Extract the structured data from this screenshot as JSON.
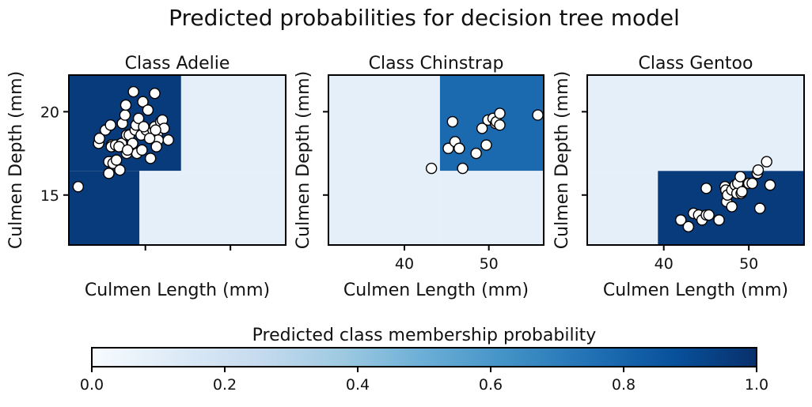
{
  "figure": {
    "title": "Predicted probabilities for decision tree model",
    "colorbar": {
      "label": "Predicted class membership probability",
      "range": [
        0,
        1
      ],
      "ticks": [
        "0.0",
        "0.2",
        "0.4",
        "0.6",
        "0.8",
        "1.0"
      ],
      "colormap": "Blues"
    }
  },
  "chart_data": [
    {
      "type": "scatter",
      "title": "Class Adelie",
      "xlabel": "Culmen Length (mm)",
      "ylabel": "Culmen Depth (mm)",
      "xlim": [
        31,
        56.5
      ],
      "ylim": [
        12,
        22.2
      ],
      "xticks": [
        40,
        50
      ],
      "yticks": [
        15,
        20
      ],
      "show_xticklabels": false,
      "show_yticklabels": true,
      "regions": [
        {
          "x0": 31,
          "x1": 44.2,
          "y0": 16.45,
          "y1": 22.2,
          "p": 0.96
        },
        {
          "x0": 31,
          "x1": 39.3,
          "y0": 12,
          "y1": 16.45,
          "p": 0.96
        },
        {
          "x0": 44.2,
          "x1": 56.5,
          "y0": 16.45,
          "y1": 22.2,
          "p": 0.09
        },
        {
          "x0": 39.3,
          "x1": 56.5,
          "y0": 12,
          "y1": 16.45,
          "p": 0.09
        }
      ],
      "points": [
        [
          32.1,
          15.5
        ],
        [
          34.5,
          18.1
        ],
        [
          34.6,
          18.4
        ],
        [
          35.3,
          18.9
        ],
        [
          35.7,
          17.0
        ],
        [
          35.7,
          16.3
        ],
        [
          35.9,
          19.2
        ],
        [
          36.0,
          18.0
        ],
        [
          36.0,
          17.9
        ],
        [
          36.2,
          16.9
        ],
        [
          36.5,
          18.0
        ],
        [
          36.6,
          17.1
        ],
        [
          37.0,
          16.5
        ],
        [
          37.2,
          18.1
        ],
        [
          37.3,
          19.3
        ],
        [
          37.6,
          19.8
        ],
        [
          37.8,
          18.6
        ],
        [
          37.8,
          17.5
        ],
        [
          38.1,
          18.6
        ],
        [
          38.5,
          18.1
        ],
        [
          38.6,
          21.2
        ],
        [
          38.8,
          18.9
        ],
        [
          38.9,
          19.2
        ],
        [
          39.0,
          17.5
        ],
        [
          39.2,
          19.6
        ],
        [
          39.5,
          18.6
        ],
        [
          39.6,
          17.7
        ],
        [
          39.7,
          20.6
        ],
        [
          40.1,
          18.9
        ],
        [
          40.3,
          20.1
        ],
        [
          40.6,
          17.2
        ],
        [
          40.8,
          18.4
        ],
        [
          40.9,
          18.9
        ],
        [
          41.1,
          19.1
        ],
        [
          41.1,
          21.1
        ],
        [
          41.4,
          18.6
        ],
        [
          41.5,
          18.3
        ],
        [
          41.8,
          19.4
        ],
        [
          42.0,
          19.5
        ],
        [
          42.2,
          19.0
        ],
        [
          42.7,
          18.3
        ],
        [
          37.7,
          20.4
        ],
        [
          41.2,
          18.9
        ],
        [
          40.5,
          18.4
        ],
        [
          39.8,
          19.1
        ],
        [
          36.9,
          17.9
        ],
        [
          41.3,
          17.9
        ],
        [
          37.9,
          17.7
        ]
      ]
    },
    {
      "type": "scatter",
      "title": "Class Chinstrap",
      "xlabel": "Culmen Length (mm)",
      "ylabel": "Culmen Depth (mm)",
      "xlim": [
        31,
        56.5
      ],
      "ylim": [
        12,
        22.2
      ],
      "xticks": [
        40,
        50
      ],
      "yticks": [
        15,
        20
      ],
      "show_xticklabels": true,
      "show_yticklabels": false,
      "regions": [
        {
          "x0": 44.2,
          "x1": 56.5,
          "y0": 16.45,
          "y1": 22.2,
          "p": 0.78
        },
        {
          "x0": 31,
          "x1": 44.2,
          "y0": 12,
          "y1": 22.2,
          "p": 0.09
        },
        {
          "x0": 44.2,
          "x1": 56.5,
          "y0": 12,
          "y1": 16.45,
          "p": 0.09
        }
      ],
      "points": [
        [
          43.2,
          16.6
        ],
        [
          45.2,
          17.8
        ],
        [
          45.7,
          19.4
        ],
        [
          46.0,
          18.2
        ],
        [
          46.5,
          17.8
        ],
        [
          46.9,
          16.6
        ],
        [
          48.5,
          17.5
        ],
        [
          49.2,
          19.0
        ],
        [
          49.7,
          18.0
        ],
        [
          49.9,
          19.5
        ],
        [
          50.5,
          19.6
        ],
        [
          50.8,
          19.3
        ],
        [
          50.9,
          19.4
        ],
        [
          51.3,
          19.2
        ],
        [
          51.3,
          19.9
        ],
        [
          55.8,
          19.8
        ]
      ]
    },
    {
      "type": "scatter",
      "title": "Class Gentoo",
      "xlabel": "Culmen Length (mm)",
      "ylabel": "Culmen Depth (mm)",
      "xlim": [
        31,
        56.5
      ],
      "ylim": [
        12,
        22.2
      ],
      "xticks": [
        40,
        50
      ],
      "yticks": [
        15,
        20
      ],
      "show_xticklabels": true,
      "show_yticklabels": false,
      "regions": [
        {
          "x0": 39.3,
          "x1": 56.5,
          "y0": 12,
          "y1": 16.45,
          "p": 0.96
        },
        {
          "x0": 31,
          "x1": 56.5,
          "y0": 16.45,
          "y1": 22.2,
          "p": 0.09
        },
        {
          "x0": 31,
          "x1": 39.3,
          "y0": 12,
          "y1": 16.45,
          "p": 0.09
        }
      ],
      "points": [
        [
          42.0,
          13.5
        ],
        [
          42.9,
          13.1
        ],
        [
          43.5,
          13.9
        ],
        [
          44.1,
          13.8
        ],
        [
          44.5,
          13.5
        ],
        [
          45.0,
          13.8
        ],
        [
          45.3,
          13.8
        ],
        [
          45.0,
          15.4
        ],
        [
          46.5,
          13.5
        ],
        [
          47.2,
          15.5
        ],
        [
          47.3,
          15.3
        ],
        [
          47.4,
          14.6
        ],
        [
          47.5,
          15.0
        ],
        [
          48.0,
          15.3
        ],
        [
          48.0,
          14.3
        ],
        [
          48.4,
          15.6
        ],
        [
          48.6,
          15.1
        ],
        [
          48.7,
          15.7
        ],
        [
          49.0,
          16.1
        ],
        [
          49.1,
          15.1
        ],
        [
          50.0,
          15.7
        ],
        [
          50.4,
          15.7
        ],
        [
          51.0,
          16.3
        ],
        [
          51.1,
          16.5
        ],
        [
          51.3,
          14.2
        ],
        [
          52.1,
          17.0
        ],
        [
          52.5,
          15.6
        ],
        [
          49.2,
          15.2
        ]
      ]
    }
  ]
}
